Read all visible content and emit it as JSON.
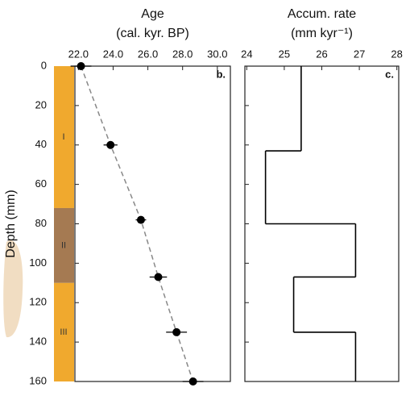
{
  "chart_data": [
    {
      "type": "scatter",
      "title": "Age",
      "subtitle": "(cal. kyr. BP)",
      "panel_label": "b.",
      "ylabel": "Depth (mm)",
      "x": [
        22.15,
        23.85,
        25.6,
        26.6,
        27.65,
        28.6
      ],
      "y": [
        0,
        40,
        78,
        107,
        135,
        160
      ],
      "errors": [
        0.6,
        0.4,
        0.3,
        0.5,
        0.6,
        0.6
      ],
      "color": "#000000",
      "fit_color": "#888888",
      "xlim": [
        21.8,
        30.75
      ],
      "xticks": [
        {
          "value": 22,
          "label": "22.0"
        },
        {
          "value": 24,
          "label": "24.0"
        },
        {
          "value": 26,
          "label": "26.0"
        },
        {
          "value": 28,
          "label": "28.0"
        },
        {
          "value": 30,
          "label": "30.0"
        }
      ],
      "ylim": [
        0,
        160
      ],
      "yticks": [
        0,
        20,
        40,
        60,
        80,
        100,
        120,
        140,
        160
      ],
      "units": [
        {
          "label": "I",
          "top": 0,
          "bottom": 72,
          "color": "#f0a92e"
        },
        {
          "label": "II",
          "top": 72,
          "bottom": 110,
          "color": "#a57a52"
        },
        {
          "label": "III",
          "top": 110,
          "bottom": 160,
          "color": "#f0a92e"
        }
      ]
    },
    {
      "type": "step",
      "title": "Accum. rate",
      "subtitle": "(mm kyr⁻¹)",
      "panel_label": "c.",
      "depth_breaks": [
        0,
        43,
        80,
        107,
        135,
        160
      ],
      "values": [
        25.45,
        24.5,
        26.9,
        25.25,
        26.9
      ],
      "color": "#000000",
      "xlim": [
        23.95,
        28.05
      ],
      "xticks": [
        24,
        25,
        26,
        27,
        28
      ],
      "ylim": [
        0,
        160
      ],
      "yticks": [
        0,
        20,
        40,
        60,
        80,
        100,
        120,
        140,
        160
      ]
    }
  ]
}
